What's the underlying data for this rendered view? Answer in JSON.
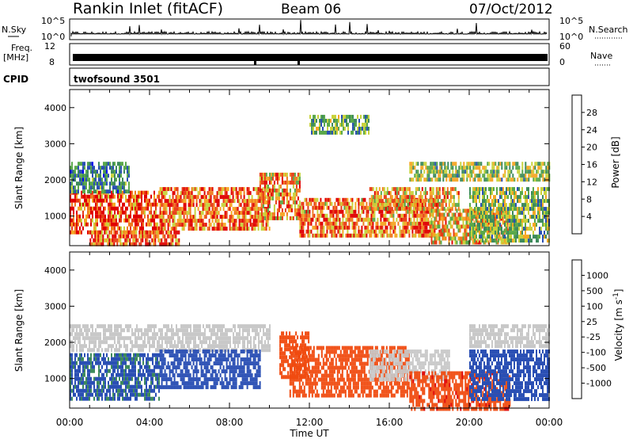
{
  "header": {
    "station": "Rankin Inlet (fitACF)",
    "beam": "Beam 06",
    "date": "07/Oct/2012"
  },
  "panels": {
    "nsky": {
      "label": "N.Sky",
      "right_label": "N.Search",
      "left_ticks": [
        "10^5",
        "10^0"
      ],
      "right_ticks": [
        "10^5",
        "10^0"
      ]
    },
    "freq": {
      "label_line1": "Freq.",
      "label_line2": "[MHz]",
      "right_label": "Nave",
      "left_ticks": [
        "12",
        "8"
      ],
      "right_ticks": [
        "60",
        "0"
      ]
    },
    "cpid": {
      "label": "CPID",
      "value": "twofsound 3501"
    }
  },
  "colors": {
    "power_scale": [
      "#0000ee",
      "#2a4fb4",
      "#3d8a5c",
      "#5aa84a",
      "#c8d23c",
      "#f5a623",
      "#f07a1e",
      "#e83b14",
      "#e00000"
    ],
    "velocity_scale": [
      "#e00000",
      "#f04b10",
      "#f07a1e",
      "#f5a623",
      "#c8c8c8",
      "#5ab84a",
      "#3d8a5c",
      "#2a4fb4",
      "#1a2fd0"
    ]
  },
  "chart_data": [
    {
      "type": "heatmap",
      "title": "",
      "xlabel": "Time UT",
      "ylabel": "Slant Range [km]",
      "x_ticks": [
        "00:00",
        "04:00",
        "08:00",
        "12:00",
        "16:00",
        "20:00",
        "00:00"
      ],
      "y_ticks": [
        1000,
        2000,
        3000,
        4000
      ],
      "xlim": [
        0,
        24
      ],
      "ylim": [
        180,
        4500
      ],
      "colorbar": {
        "label": "Power [dB]",
        "ticks": [
          "4",
          "8",
          "12",
          "16",
          "20",
          "24",
          "28"
        ],
        "range": [
          0,
          32
        ]
      },
      "bands": [
        {
          "t": [
            0.0,
            4.5
          ],
          "range": [
            500,
            1700
          ],
          "value": 27
        },
        {
          "t": [
            0.0,
            3.0
          ],
          "range": [
            1700,
            2500
          ],
          "value": 9
        },
        {
          "t": [
            1.0,
            5.5
          ],
          "range": [
            200,
            600
          ],
          "value": 26
        },
        {
          "t": [
            4.5,
            10.0
          ],
          "range": [
            700,
            1800
          ],
          "value": 25
        },
        {
          "t": [
            9.5,
            11.5
          ],
          "range": [
            900,
            2200
          ],
          "value": 22
        },
        {
          "t": [
            11.5,
            18.5
          ],
          "range": [
            500,
            1500
          ],
          "value": 24
        },
        {
          "t": [
            15.0,
            19.5
          ],
          "range": [
            1200,
            1800
          ],
          "value": 21
        },
        {
          "t": [
            18.0,
            22.0
          ],
          "range": [
            300,
            1200
          ],
          "value": 20
        },
        {
          "t": [
            20.0,
            24.0
          ],
          "range": [
            300,
            1800
          ],
          "value": 13
        },
        {
          "t": [
            17.0,
            24.0
          ],
          "range": [
            2000,
            2500
          ],
          "value": 14
        },
        {
          "t": [
            12.0,
            15.0
          ],
          "range": [
            3300,
            3800
          ],
          "value": 12
        }
      ]
    },
    {
      "type": "heatmap",
      "title": "",
      "xlabel": "Time UT",
      "ylabel": "Slant Range [km]",
      "x_ticks": [
        "00:00",
        "04:00",
        "08:00",
        "12:00",
        "16:00",
        "20:00",
        "00:00"
      ],
      "y_ticks": [
        1000,
        2000,
        3000,
        4000
      ],
      "xlim": [
        0,
        24
      ],
      "ylim": [
        180,
        4500
      ],
      "colorbar": {
        "label": "Velocity [m s^-1]",
        "ticks": [
          "1000",
          "500",
          "100",
          "25",
          "-25",
          "-100",
          "-500",
          "-1000"
        ]
      },
      "bands": [
        {
          "t": [
            0.0,
            4.5
          ],
          "range": [
            400,
            1700
          ],
          "value": 120
        },
        {
          "t": [
            0.0,
            10.0
          ],
          "range": [
            1800,
            2500
          ],
          "value": 0
        },
        {
          "t": [
            4.5,
            9.5
          ],
          "range": [
            800,
            1800
          ],
          "value": 300
        },
        {
          "t": [
            10.5,
            12.0
          ],
          "range": [
            1000,
            2300
          ],
          "value": -250
        },
        {
          "t": [
            11.0,
            17.0
          ],
          "range": [
            500,
            1900
          ],
          "value": -300
        },
        {
          "t": [
            15.0,
            19.0
          ],
          "range": [
            1000,
            1800
          ],
          "value": 0
        },
        {
          "t": [
            17.0,
            22.0
          ],
          "range": [
            200,
            1200
          ],
          "value": -400
        },
        {
          "t": [
            20.0,
            24.0
          ],
          "range": [
            400,
            1800
          ],
          "value": 150
        },
        {
          "t": [
            20.0,
            24.0
          ],
          "range": [
            1900,
            2500
          ],
          "value": 0
        }
      ]
    }
  ]
}
